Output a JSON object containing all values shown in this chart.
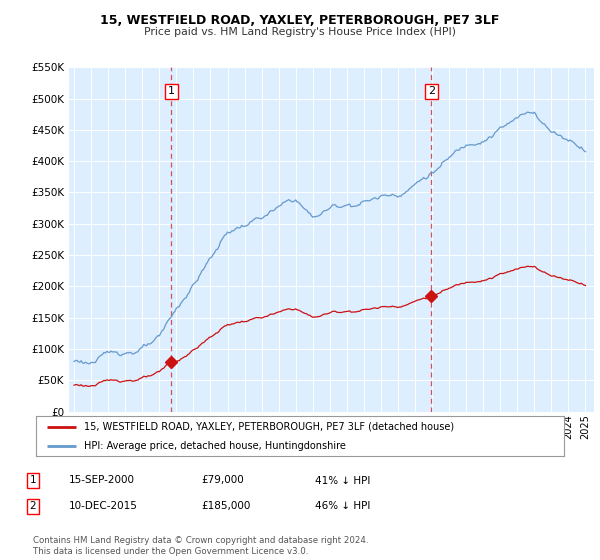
{
  "title1": "15, WESTFIELD ROAD, YAXLEY, PETERBOROUGH, PE7 3LF",
  "title2": "Price paid vs. HM Land Registry's House Price Index (HPI)",
  "hpi_label": "HPI: Average price, detached house, Huntingdonshire",
  "property_label": "15, WESTFIELD ROAD, YAXLEY, PETERBOROUGH, PE7 3LF (detached house)",
  "sale1_date": "15-SEP-2000",
  "sale1_price": 79000,
  "sale1_pct": "41% ↓ HPI",
  "sale2_date": "10-DEC-2015",
  "sale2_price": 185000,
  "sale2_pct": "46% ↓ HPI",
  "footer": "Contains HM Land Registry data © Crown copyright and database right 2024.\nThis data is licensed under the Open Government Licence v3.0.",
  "hpi_color": "#6699cc",
  "property_color": "#cc1111",
  "dashed_line_color": "#cc1111",
  "background_color": "#ddeeff",
  "ylim": [
    0,
    550000
  ],
  "yticks": [
    0,
    50000,
    100000,
    150000,
    200000,
    250000,
    300000,
    350000,
    400000,
    450000,
    500000,
    550000
  ]
}
